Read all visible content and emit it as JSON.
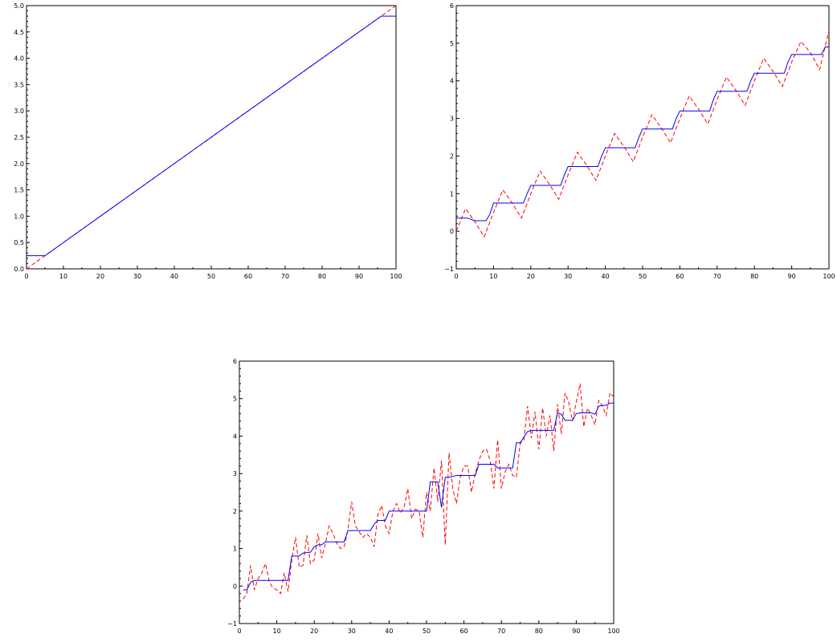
{
  "chart_data": [
    {
      "type": "line",
      "xlim": [
        0,
        100
      ],
      "ylim": [
        0,
        5
      ],
      "x_ticks": [
        0,
        10,
        20,
        30,
        40,
        50,
        60,
        70,
        80,
        90,
        100
      ],
      "y_ticks": [
        0.0,
        0.5,
        1.0,
        1.5,
        2.0,
        2.5,
        3.0,
        3.5,
        4.0,
        4.5,
        5.0
      ],
      "x_tick_labels": [
        "0",
        "10",
        "20",
        "30",
        "40",
        "50",
        "60",
        "70",
        "80",
        "90",
        "100"
      ],
      "y_tick_labels": [
        "0.0",
        "0.5",
        "1.0",
        "1.5",
        "2.0",
        "2.5",
        "3.0",
        "3.5",
        "4.0",
        "4.5",
        "5.0"
      ],
      "grid": false,
      "series": [
        {
          "color": "#ff0000",
          "style": "dashed",
          "x": [
            0,
            100
          ],
          "y": [
            0.0,
            5.0
          ]
        },
        {
          "color": "#0000ff",
          "style": "solid",
          "x": [
            0,
            5,
            96,
            100
          ],
          "y": [
            0.25,
            0.25,
            4.8,
            4.8
          ]
        }
      ]
    },
    {
      "type": "line",
      "xlim": [
        0,
        100
      ],
      "ylim": [
        -1,
        6
      ],
      "x_ticks": [
        0,
        10,
        20,
        30,
        40,
        50,
        60,
        70,
        80,
        90,
        100
      ],
      "y_ticks": [
        -1,
        0,
        1,
        2,
        3,
        4,
        5,
        6
      ],
      "x_tick_labels": [
        "0",
        "10",
        "20",
        "30",
        "40",
        "50",
        "60",
        "70",
        "80",
        "90",
        "100"
      ],
      "y_tick_labels": [
        "−1",
        "0",
        "1",
        "2",
        "3",
        "4",
        "5",
        "6"
      ],
      "grid": false,
      "series": [
        {
          "color": "#ff0000",
          "style": "dashed",
          "x": [
            0,
            2.5,
            5,
            7.5,
            10,
            12.5,
            15,
            17.5,
            20,
            22.5,
            25,
            27.5,
            30,
            32.5,
            35,
            37.5,
            40,
            42.5,
            45,
            47.5,
            50,
            52.5,
            55,
            57.5,
            60,
            62.5,
            65,
            67.5,
            70,
            72.5,
            75,
            77.5,
            80,
            82.5,
            85,
            87.5,
            90,
            92.5,
            95,
            97.5,
            100
          ],
          "y": [
            0.0,
            0.6,
            0.25,
            -0.15,
            0.5,
            1.1,
            0.75,
            0.35,
            1.0,
            1.6,
            1.25,
            0.85,
            1.5,
            2.1,
            1.75,
            1.35,
            2.0,
            2.6,
            2.25,
            1.85,
            2.5,
            3.1,
            2.75,
            2.35,
            3.0,
            3.6,
            3.25,
            2.85,
            3.5,
            4.1,
            3.75,
            3.35,
            4.0,
            4.6,
            4.25,
            3.85,
            4.5,
            5.05,
            4.75,
            4.3,
            5.35
          ]
        },
        {
          "color": "#0000ff",
          "style": "solid",
          "x": [
            0,
            3,
            5,
            8,
            9,
            10,
            18,
            19,
            20,
            28,
            29,
            30,
            38,
            39,
            40,
            48,
            49,
            50,
            58,
            59,
            60,
            68,
            69,
            70,
            78,
            79,
            80,
            88,
            89,
            90,
            98,
            99,
            100
          ],
          "y": [
            0.35,
            0.35,
            0.28,
            0.28,
            0.45,
            0.75,
            0.75,
            1.0,
            1.22,
            1.22,
            1.5,
            1.72,
            1.72,
            2.0,
            2.22,
            2.22,
            2.5,
            2.72,
            2.72,
            3.0,
            3.2,
            3.2,
            3.5,
            3.72,
            3.72,
            4.0,
            4.2,
            4.2,
            4.5,
            4.7,
            4.7,
            4.9,
            4.9
          ]
        }
      ]
    },
    {
      "type": "line",
      "xlim": [
        0,
        100
      ],
      "ylim": [
        -1,
        6
      ],
      "x_ticks": [
        0,
        10,
        20,
        30,
        40,
        50,
        60,
        70,
        80,
        90,
        100
      ],
      "y_ticks": [
        -1,
        0,
        1,
        2,
        3,
        4,
        5,
        6
      ],
      "x_tick_labels": [
        "0",
        "10",
        "20",
        "30",
        "40",
        "50",
        "60",
        "70",
        "80",
        "90",
        "100"
      ],
      "y_tick_labels": [
        "−1",
        "0",
        "1",
        "2",
        "3",
        "4",
        "5",
        "6"
      ],
      "grid": false,
      "series": [
        {
          "color": "#ff0000",
          "style": "dashed",
          "x": [
            1,
            2,
            3,
            4,
            5,
            6,
            7,
            8,
            9,
            10,
            11,
            12,
            13,
            14,
            15,
            16,
            17,
            18,
            19,
            20,
            21,
            22,
            23,
            24,
            25,
            26,
            27,
            28,
            29,
            30,
            31,
            32,
            33,
            34,
            35,
            36,
            37,
            38,
            39,
            40,
            41,
            42,
            43,
            44,
            45,
            46,
            47,
            48,
            49,
            50,
            51,
            52,
            53,
            54,
            55,
            56,
            57,
            58,
            59,
            60,
            61,
            62,
            63,
            64,
            65,
            66,
            67,
            68,
            69,
            70,
            71,
            72,
            73,
            74,
            75,
            76,
            77,
            78,
            79,
            80,
            81,
            82,
            83,
            84,
            85,
            86,
            87,
            88,
            89,
            90,
            91,
            92,
            93,
            94,
            95,
            96,
            97,
            98,
            99,
            100
          ],
          "y": [
            -0.35,
            -0.2,
            0.55,
            -0.1,
            0.2,
            0.35,
            0.6,
            0.1,
            -0.05,
            -0.1,
            -0.2,
            0.35,
            -0.15,
            0.7,
            1.3,
            0.5,
            0.55,
            1.35,
            0.6,
            0.7,
            1.4,
            0.75,
            1.15,
            1.6,
            1.4,
            1.15,
            1.0,
            1.05,
            1.5,
            2.25,
            1.6,
            1.45,
            1.3,
            1.4,
            1.3,
            1.05,
            1.9,
            2.15,
            1.6,
            1.4,
            2.0,
            2.2,
            1.95,
            2.1,
            2.6,
            1.8,
            2.05,
            2.0,
            1.3,
            2.5,
            2.0,
            3.15,
            2.25,
            3.35,
            1.1,
            3.55,
            2.6,
            2.2,
            2.9,
            3.2,
            3.2,
            2.5,
            3.0,
            3.35,
            3.6,
            3.65,
            3.35,
            2.6,
            3.9,
            2.6,
            3.05,
            3.25,
            2.95,
            2.9,
            3.8,
            3.9,
            4.8,
            3.95,
            4.65,
            3.65,
            4.75,
            4.0,
            4.55,
            3.6,
            4.85,
            4.05,
            5.15,
            4.9,
            4.4,
            4.9,
            5.4,
            4.25,
            4.75,
            4.55,
            4.3,
            4.95,
            4.8,
            4.55,
            5.15,
            5.05
          ]
        },
        {
          "color": "#0000ff",
          "style": "solid",
          "x": [
            1,
            2,
            3,
            4,
            12,
            13,
            14,
            16,
            17,
            19,
            20,
            21,
            22,
            23,
            28,
            29,
            35,
            36,
            37,
            39,
            40,
            41,
            50,
            51,
            53,
            54,
            55,
            56,
            58,
            63,
            64,
            68,
            69,
            73,
            74,
            75,
            77,
            78,
            84,
            85,
            86,
            87,
            89,
            90,
            91,
            94,
            95,
            96,
            97,
            98,
            99,
            100
          ],
          "y": [
            -0.1,
            -0.1,
            0.1,
            0.15,
            0.15,
            0.15,
            0.8,
            0.8,
            0.88,
            0.9,
            1.05,
            1.1,
            1.1,
            1.18,
            1.18,
            1.48,
            1.48,
            1.65,
            1.75,
            1.75,
            2.0,
            2.0,
            2.0,
            2.78,
            2.78,
            2.1,
            2.9,
            2.9,
            2.95,
            2.95,
            3.25,
            3.25,
            3.15,
            3.15,
            3.82,
            3.82,
            4.12,
            4.15,
            4.15,
            4.62,
            4.58,
            4.42,
            4.42,
            4.6,
            4.62,
            4.62,
            4.58,
            4.8,
            4.82,
            4.82,
            4.88,
            4.88
          ]
        }
      ]
    }
  ]
}
